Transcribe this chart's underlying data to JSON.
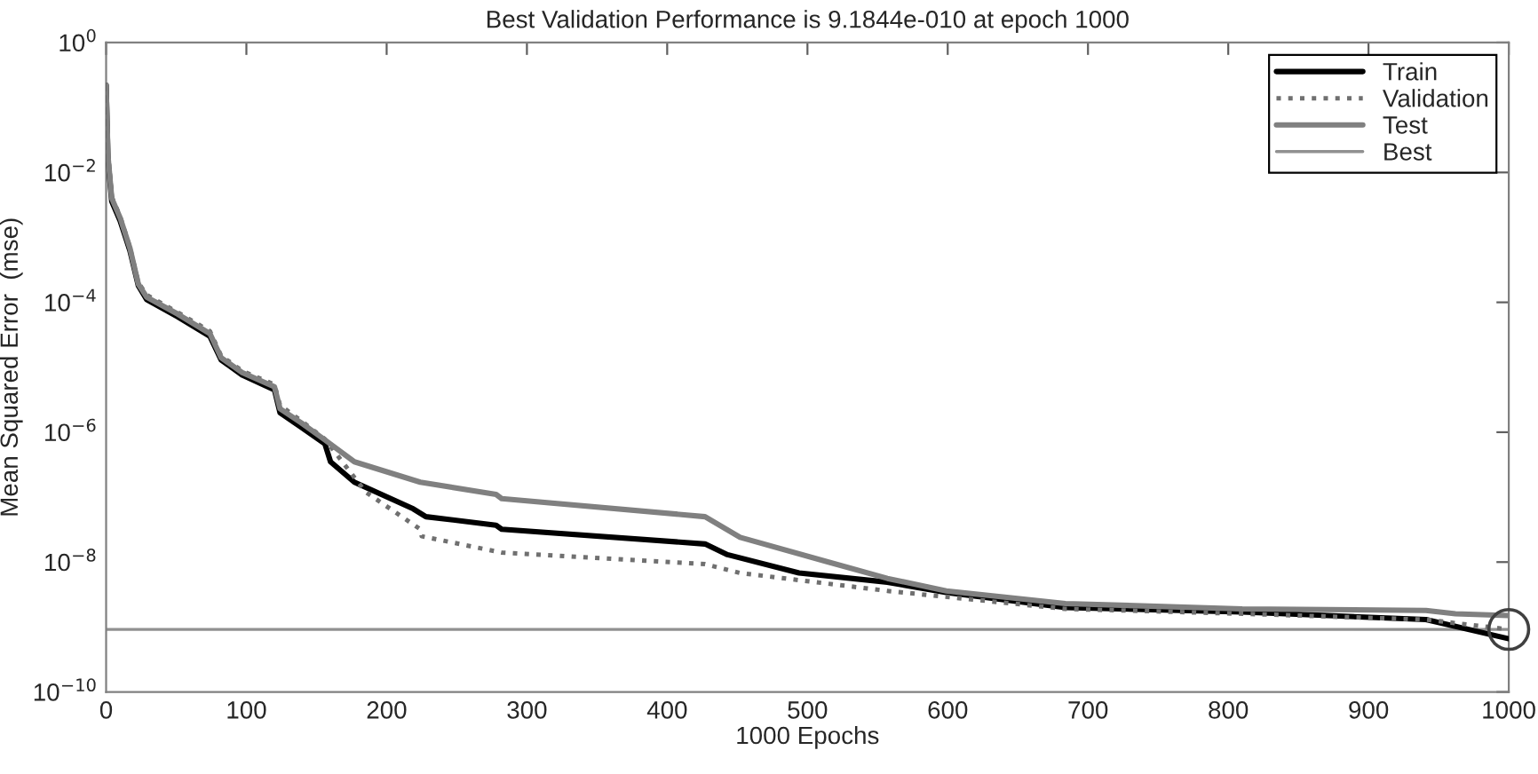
{
  "chart_data": {
    "type": "line",
    "title": "Best Validation Performance is 9.1844e-010 at epoch 1000",
    "xlabel": "1000 Epochs",
    "ylabel": "Mean Squared Error  (mse)",
    "log": "y",
    "xlim": [
      0,
      1000
    ],
    "xticks": [
      0,
      100,
      200,
      300,
      400,
      500,
      600,
      700,
      800,
      900,
      1000
    ],
    "ylim": [
      1e-10,
      1
    ],
    "yticks": [
      {
        "value": 1e-10,
        "label": "10$^{−10}$"
      },
      {
        "value": 1e-08,
        "label": "10$^{−8}$"
      },
      {
        "value": 1e-06,
        "label": "10$^{−6}$"
      },
      {
        "value": 0.0001,
        "label": "10$^{−4}$"
      },
      {
        "value": 0.01,
        "label": "10$^{−2}$"
      },
      {
        "value": 1,
        "label": "10$^{0}$"
      }
    ],
    "grid": false,
    "legend": "top right",
    "marker": "none",
    "series": [
      {
        "name": "Train",
        "color": "#000000",
        "line_style": "solid",
        "x": [
          0,
          1.3,
          4,
          10,
          17,
          23,
          29,
          51,
          74,
          82,
          97,
          120,
          124,
          139,
          156,
          160,
          177,
          219,
          228,
          278,
          282,
          427,
          443,
          494,
          557,
          599,
          684,
          810,
          941,
          1000
        ],
        "values": [
          0.22,
          0.016,
          0.0036,
          0.0018,
          0.00062,
          0.00018,
          0.00011,
          6e-05,
          3e-05,
          1.3e-05,
          7.6e-06,
          4.5e-06,
          2e-06,
          1.2e-06,
          6.6e-07,
          3.5e-07,
          1.7e-07,
          6.6e-08,
          5e-08,
          3.7e-08,
          3.2e-08,
          1.9e-08,
          1.3e-08,
          6.8e-09,
          4.9e-09,
          3.4e-09,
          2e-09,
          1.7e-09,
          1.3e-09,
          6.6e-10
        ]
      },
      {
        "name": "Validation",
        "color": "#707070",
        "line_style": "dotted",
        "x": [
          0,
          1.3,
          4,
          10,
          17,
          23,
          29,
          51,
          74,
          82,
          97,
          120,
          124,
          139,
          156,
          185,
          224,
          225,
          282,
          427,
          452,
          557,
          684,
          810,
          941,
          1000
        ],
        "values": [
          0.18,
          0.02,
          0.0042,
          0.0021,
          0.0007,
          0.0002,
          0.00013,
          7e-05,
          3.6e-05,
          1.5e-05,
          8.8e-06,
          5.4e-06,
          2.6e-06,
          1.5e-06,
          7.8e-07,
          1.2e-07,
          3.2e-08,
          2.5e-08,
          1.4e-08,
          9.3e-09,
          6.8e-09,
          3.6e-09,
          1.9e-09,
          1.6e-09,
          1.3e-09,
          9.1844e-10
        ]
      },
      {
        "name": "Test",
        "color": "#808080",
        "line_style": "solid",
        "x": [
          0,
          1.3,
          4,
          10,
          17,
          23,
          29,
          51,
          74,
          82,
          97,
          120,
          124,
          139,
          156,
          177,
          224,
          278,
          282,
          427,
          452,
          515,
          557,
          599,
          684,
          810,
          941,
          962,
          1000
        ],
        "values": [
          0.22,
          0.018,
          0.004,
          0.002,
          0.00068,
          0.00019,
          0.00012,
          6.6e-05,
          3.3e-05,
          1.4e-05,
          8.3e-06,
          5e-06,
          2.3e-06,
          1.4e-06,
          7.6e-07,
          3.5e-07,
          1.7e-07,
          1.1e-07,
          9.5e-08,
          5e-08,
          2.4e-08,
          1e-08,
          5.6e-09,
          3.6e-09,
          2.3e-09,
          1.9e-09,
          1.8e-09,
          1.6e-09,
          1.5e-09
        ]
      },
      {
        "type": "scatter",
        "marker": "circle",
        "color": "#404040",
        "x": [
          1000
        ],
        "values": [
          9.1844e-10
        ]
      }
    ],
    "ref_lines": [
      {
        "axis": "y",
        "value": 9.1844e-10,
        "label": "Best",
        "color": "#909090",
        "line_style": "solid"
      }
    ]
  }
}
